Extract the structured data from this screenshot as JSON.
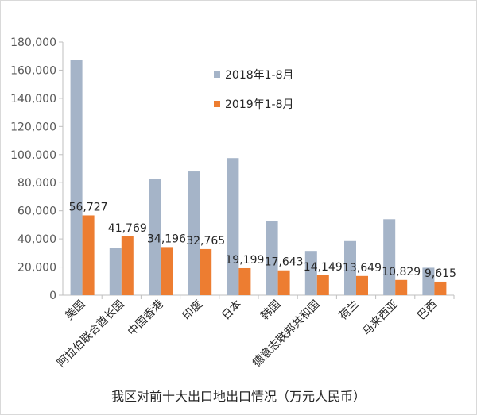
{
  "chart_data": {
    "type": "bar",
    "title": "",
    "caption": "我区对前十大出口地出口情况（万元人民币）",
    "xlabel": "",
    "ylabel": "",
    "ylim": [
      0,
      180000
    ],
    "yticks": [
      0,
      20000,
      40000,
      60000,
      80000,
      100000,
      120000,
      140000,
      160000,
      180000
    ],
    "ytick_labels": [
      "0",
      "20,000",
      "40,000",
      "60,000",
      "80,000",
      "100,000",
      "120,000",
      "140,000",
      "160,000",
      "180,000"
    ],
    "grid": false,
    "legend_position": "top-center",
    "categories": [
      "美国",
      "阿拉伯联合酋长国",
      "中国香港",
      "印度",
      "日本",
      "韩国",
      "德意志联邦共和国",
      "荷兰",
      "马来西亚",
      "巴西"
    ],
    "series": [
      {
        "name": "2018年1-8月",
        "color": "#a5b4c8",
        "values": [
          167500,
          33500,
          82500,
          88000,
          97500,
          52500,
          31500,
          38500,
          54000,
          19500
        ]
      },
      {
        "name": "2019年1-8月",
        "color": "#ed7d31",
        "values": [
          56727,
          41769,
          34196,
          32765,
          19199,
          17643,
          14149,
          13649,
          10829,
          9615
        ],
        "data_labels": [
          "56,727",
          "41,769",
          "34,196",
          "32,765",
          "19,199",
          "17,643",
          "14,149",
          "13,649",
          "10,829",
          "9,615"
        ]
      }
    ]
  }
}
